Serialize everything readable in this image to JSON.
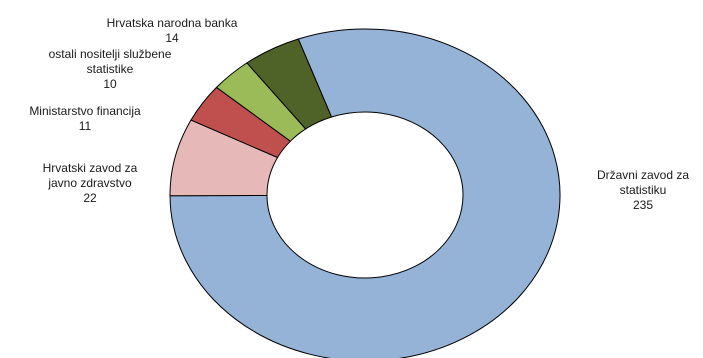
{
  "chart_data": {
    "type": "pie",
    "variant": "donut",
    "title": "",
    "start_angle_deg": -20,
    "slices": [
      {
        "label_lines": [
          "Državni zavod za",
          "statistiku"
        ],
        "value": 235,
        "color": "#95b3d7"
      },
      {
        "label_lines": [
          "Hrvatski zavod za",
          "javno zdravstvo"
        ],
        "value": 22,
        "color": "#e6b9b8"
      },
      {
        "label_lines": [
          "Ministarstvo financija"
        ],
        "value": 11,
        "color": "#c0504d"
      },
      {
        "label_lines": [
          "ostali  nositelji službene",
          "statistike"
        ],
        "value": 10,
        "color": "#9bbb59"
      },
      {
        "label_lines": [
          "Hrvatska narodna banka"
        ],
        "value": 14,
        "color": "#4f6228"
      }
    ]
  }
}
